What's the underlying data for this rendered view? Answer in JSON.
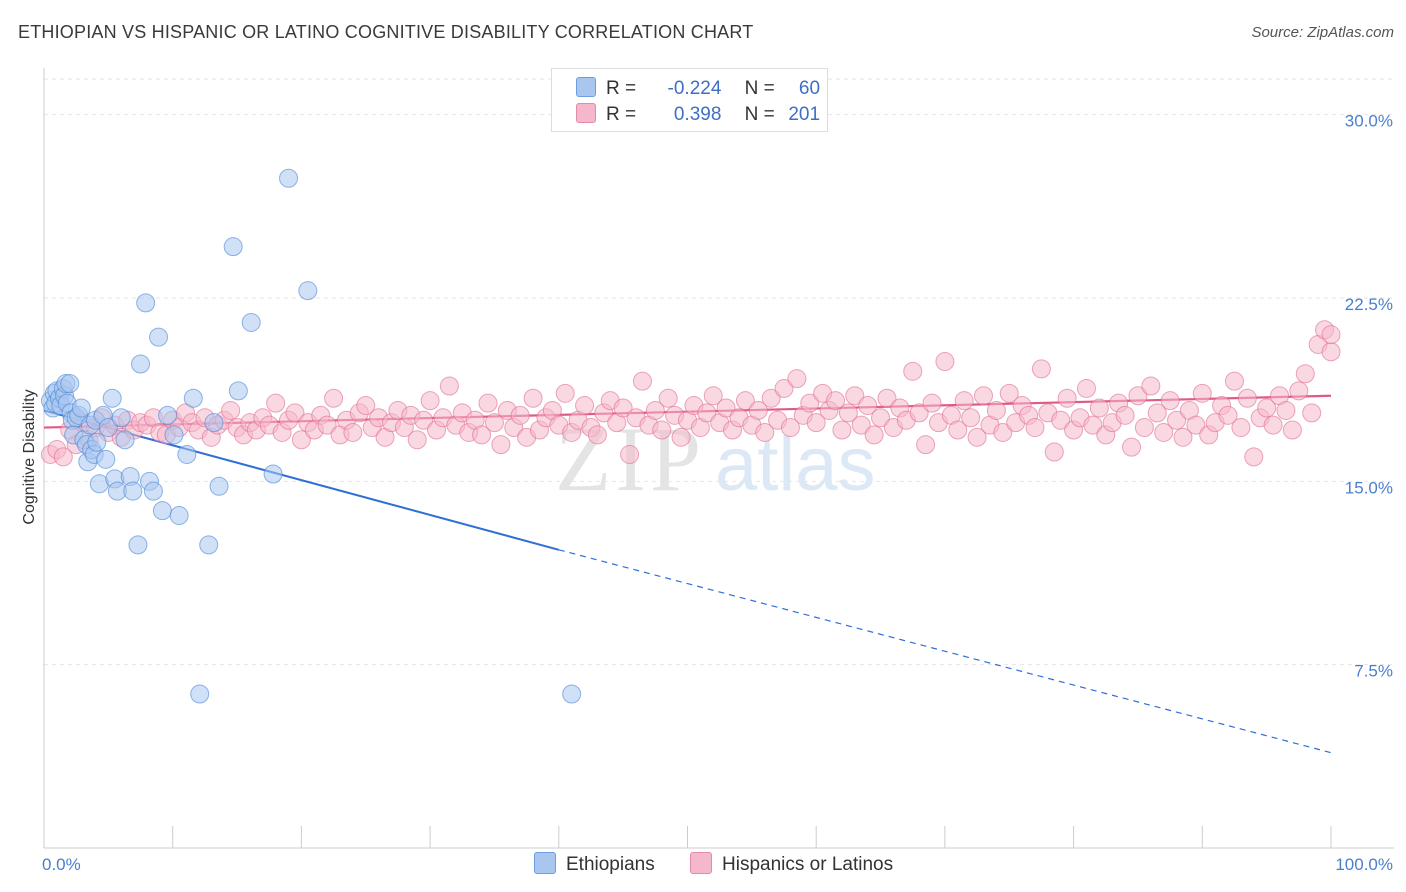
{
  "header": {
    "title": "ETHIOPIAN VS HISPANIC OR LATINO COGNITIVE DISABILITY CORRELATION CHART",
    "source": "Source: ZipAtlas.com"
  },
  "watermark": {
    "zip": "ZIP",
    "atlas": "atlas"
  },
  "legend": {
    "rows": [
      {
        "r_label": "R =",
        "r_value": "-0.224",
        "n_label": "N =",
        "n_value": "60",
        "color": "#a9c6ef"
      },
      {
        "r_label": "R =",
        "r_value": "0.398",
        "n_label": "N =",
        "n_value": "201",
        "color": "#f5b8cb"
      }
    ]
  },
  "bottom_legend": {
    "items": [
      {
        "label": "Ethiopians",
        "color": "#a9c6ef"
      },
      {
        "label": "Hispanics or Latinos",
        "color": "#f5b8cb"
      }
    ]
  },
  "chart_data": {
    "type": "scatter",
    "ylabel": "Cognitive Disability",
    "xlim": [
      0,
      100
    ],
    "ylim": [
      0,
      31.5
    ],
    "x_tick_labels": [
      "0.0%",
      "100.0%"
    ],
    "y_ticks": [
      {
        "value": 7.5,
        "label": "7.5%"
      },
      {
        "value": 15.0,
        "label": "15.0%"
      },
      {
        "value": 22.5,
        "label": "22.5%"
      },
      {
        "value": 30.0,
        "label": "30.0%"
      }
    ],
    "grid": true,
    "series": [
      {
        "name": "Ethiopians",
        "color": "#4a86d8",
        "fill": "#a9c6ef",
        "trend": {
          "x0": 0,
          "y0": 17.9,
          "x1": 40,
          "y1": 12.2,
          "dash_to_x": 100,
          "dash_to_y": 3.9
        },
        "points": [
          [
            0.5,
            18.3
          ],
          [
            0.7,
            18.0
          ],
          [
            0.8,
            18.6
          ],
          [
            0.9,
            18.2
          ],
          [
            1.0,
            18.7
          ],
          [
            1.2,
            18.4
          ],
          [
            1.3,
            18.1
          ],
          [
            1.5,
            18.8
          ],
          [
            1.6,
            18.5
          ],
          [
            1.7,
            19.0
          ],
          [
            1.8,
            18.2
          ],
          [
            2.0,
            19.0
          ],
          [
            2.1,
            17.8
          ],
          [
            2.2,
            17.5
          ],
          [
            2.3,
            16.9
          ],
          [
            2.5,
            17.6
          ],
          [
            2.7,
            17.7
          ],
          [
            2.9,
            18.0
          ],
          [
            3.1,
            16.7
          ],
          [
            3.3,
            16.5
          ],
          [
            3.4,
            15.8
          ],
          [
            3.6,
            17.3
          ],
          [
            3.7,
            16.3
          ],
          [
            3.9,
            16.1
          ],
          [
            4.0,
            17.5
          ],
          [
            4.1,
            16.6
          ],
          [
            4.3,
            14.9
          ],
          [
            4.6,
            17.7
          ],
          [
            4.8,
            15.9
          ],
          [
            5.0,
            17.2
          ],
          [
            5.3,
            18.4
          ],
          [
            5.5,
            15.1
          ],
          [
            5.7,
            14.6
          ],
          [
            6.0,
            17.6
          ],
          [
            6.3,
            16.7
          ],
          [
            6.7,
            15.2
          ],
          [
            6.9,
            14.6
          ],
          [
            7.3,
            12.4
          ],
          [
            7.5,
            19.8
          ],
          [
            7.9,
            22.3
          ],
          [
            8.2,
            15.0
          ],
          [
            8.5,
            14.6
          ],
          [
            8.9,
            20.9
          ],
          [
            9.2,
            13.8
          ],
          [
            9.6,
            17.7
          ],
          [
            10.1,
            16.9
          ],
          [
            10.5,
            13.6
          ],
          [
            11.1,
            16.1
          ],
          [
            11.6,
            18.4
          ],
          [
            12.1,
            6.3
          ],
          [
            12.8,
            12.4
          ],
          [
            13.2,
            17.4
          ],
          [
            13.6,
            14.8
          ],
          [
            14.7,
            24.6
          ],
          [
            15.1,
            18.7
          ],
          [
            16.1,
            21.5
          ],
          [
            17.8,
            15.3
          ],
          [
            19.0,
            27.4
          ],
          [
            20.5,
            22.8
          ],
          [
            41.0,
            6.3
          ]
        ]
      },
      {
        "name": "Hispanics or Latinos",
        "color": "#e06c93",
        "fill": "#f5b8cb",
        "trend": {
          "x0": 0,
          "y0": 17.2,
          "x1": 100,
          "y1": 18.5
        },
        "points": [
          [
            0.5,
            16.1
          ],
          [
            1.0,
            16.3
          ],
          [
            1.5,
            16.0
          ],
          [
            2.0,
            17.1
          ],
          [
            2.5,
            16.5
          ],
          [
            3.0,
            17.4
          ],
          [
            3.5,
            16.7
          ],
          [
            4.0,
            17.2
          ],
          [
            4.5,
            17.6
          ],
          [
            5.0,
            17.0
          ],
          [
            5.5,
            17.3
          ],
          [
            6.0,
            16.8
          ],
          [
            6.5,
            17.5
          ],
          [
            7.0,
            17.1
          ],
          [
            7.5,
            17.4
          ],
          [
            8.0,
            17.3
          ],
          [
            8.5,
            17.6
          ],
          [
            9.0,
            17.0
          ],
          [
            9.5,
            16.9
          ],
          [
            10.0,
            17.5
          ],
          [
            10.5,
            17.2
          ],
          [
            11.0,
            17.8
          ],
          [
            11.5,
            17.4
          ],
          [
            12.0,
            17.1
          ],
          [
            12.5,
            17.6
          ],
          [
            13.0,
            16.8
          ],
          [
            13.5,
            17.3
          ],
          [
            14.0,
            17.5
          ],
          [
            14.5,
            17.9
          ],
          [
            15.0,
            17.2
          ],
          [
            15.5,
            16.9
          ],
          [
            16.0,
            17.4
          ],
          [
            16.5,
            17.1
          ],
          [
            17.0,
            17.6
          ],
          [
            17.5,
            17.3
          ],
          [
            18.0,
            18.2
          ],
          [
            18.5,
            17.0
          ],
          [
            19.0,
            17.5
          ],
          [
            19.5,
            17.8
          ],
          [
            20.0,
            16.7
          ],
          [
            20.5,
            17.4
          ],
          [
            21.0,
            17.1
          ],
          [
            21.5,
            17.7
          ],
          [
            22.0,
            17.3
          ],
          [
            22.5,
            18.4
          ],
          [
            23.0,
            16.9
          ],
          [
            23.5,
            17.5
          ],
          [
            24.0,
            17.0
          ],
          [
            24.5,
            17.8
          ],
          [
            25.0,
            18.1
          ],
          [
            25.5,
            17.2
          ],
          [
            26.0,
            17.6
          ],
          [
            26.5,
            16.8
          ],
          [
            27.0,
            17.4
          ],
          [
            27.5,
            17.9
          ],
          [
            28.0,
            17.2
          ],
          [
            28.5,
            17.7
          ],
          [
            29.0,
            16.7
          ],
          [
            29.5,
            17.5
          ],
          [
            30.0,
            18.3
          ],
          [
            30.5,
            17.1
          ],
          [
            31.0,
            17.6
          ],
          [
            31.5,
            18.9
          ],
          [
            32.0,
            17.3
          ],
          [
            32.5,
            17.8
          ],
          [
            33.0,
            17.0
          ],
          [
            33.5,
            17.5
          ],
          [
            34.0,
            16.9
          ],
          [
            34.5,
            18.2
          ],
          [
            35.0,
            17.4
          ],
          [
            35.5,
            16.5
          ],
          [
            36.0,
            17.9
          ],
          [
            36.5,
            17.2
          ],
          [
            37.0,
            17.7
          ],
          [
            37.5,
            16.8
          ],
          [
            38.0,
            18.4
          ],
          [
            38.5,
            17.1
          ],
          [
            39.0,
            17.6
          ],
          [
            39.5,
            17.9
          ],
          [
            40.0,
            17.3
          ],
          [
            40.5,
            18.6
          ],
          [
            41.0,
            17.0
          ],
          [
            41.5,
            17.5
          ],
          [
            42.0,
            18.1
          ],
          [
            42.5,
            17.2
          ],
          [
            43.0,
            16.9
          ],
          [
            43.5,
            17.8
          ],
          [
            44.0,
            18.3
          ],
          [
            44.5,
            17.4
          ],
          [
            45.0,
            18.0
          ],
          [
            45.5,
            16.1
          ],
          [
            46.0,
            17.6
          ],
          [
            46.5,
            19.1
          ],
          [
            47.0,
            17.3
          ],
          [
            47.5,
            17.9
          ],
          [
            48.0,
            17.1
          ],
          [
            48.5,
            18.4
          ],
          [
            49.0,
            17.7
          ],
          [
            49.5,
            16.8
          ],
          [
            50.0,
            17.5
          ],
          [
            50.5,
            18.1
          ],
          [
            51.0,
            17.2
          ],
          [
            51.5,
            17.8
          ],
          [
            52.0,
            18.5
          ],
          [
            52.5,
            17.4
          ],
          [
            53.0,
            18.0
          ],
          [
            53.5,
            17.1
          ],
          [
            54.0,
            17.6
          ],
          [
            54.5,
            18.3
          ],
          [
            55.0,
            17.3
          ],
          [
            55.5,
            17.9
          ],
          [
            56.0,
            17.0
          ],
          [
            56.5,
            18.4
          ],
          [
            57.0,
            17.5
          ],
          [
            57.5,
            18.8
          ],
          [
            58.0,
            17.2
          ],
          [
            58.5,
            19.2
          ],
          [
            59.0,
            17.7
          ],
          [
            59.5,
            18.2
          ],
          [
            60.0,
            17.4
          ],
          [
            60.5,
            18.6
          ],
          [
            61.0,
            17.9
          ],
          [
            61.5,
            18.3
          ],
          [
            62.0,
            17.1
          ],
          [
            62.5,
            17.8
          ],
          [
            63.0,
            18.5
          ],
          [
            63.5,
            17.3
          ],
          [
            64.0,
            18.1
          ],
          [
            64.5,
            16.9
          ],
          [
            65.0,
            17.6
          ],
          [
            65.5,
            18.4
          ],
          [
            66.0,
            17.2
          ],
          [
            66.5,
            18.0
          ],
          [
            67.0,
            17.5
          ],
          [
            67.5,
            19.5
          ],
          [
            68.0,
            17.8
          ],
          [
            68.5,
            16.5
          ],
          [
            69.0,
            18.2
          ],
          [
            69.5,
            17.4
          ],
          [
            70.0,
            19.9
          ],
          [
            70.5,
            17.7
          ],
          [
            71.0,
            17.1
          ],
          [
            71.5,
            18.3
          ],
          [
            72.0,
            17.6
          ],
          [
            72.5,
            16.8
          ],
          [
            73.0,
            18.5
          ],
          [
            73.5,
            17.3
          ],
          [
            74.0,
            17.9
          ],
          [
            74.5,
            17.0
          ],
          [
            75.0,
            18.6
          ],
          [
            75.5,
            17.4
          ],
          [
            76.0,
            18.1
          ],
          [
            76.5,
            17.7
          ],
          [
            77.0,
            17.2
          ],
          [
            77.5,
            19.6
          ],
          [
            78.0,
            17.8
          ],
          [
            78.5,
            16.2
          ],
          [
            79.0,
            17.5
          ],
          [
            79.5,
            18.4
          ],
          [
            80.0,
            17.1
          ],
          [
            80.5,
            17.6
          ],
          [
            81.0,
            18.8
          ],
          [
            81.5,
            17.3
          ],
          [
            82.0,
            18.0
          ],
          [
            82.5,
            16.9
          ],
          [
            83.0,
            17.4
          ],
          [
            83.5,
            18.2
          ],
          [
            84.0,
            17.7
          ],
          [
            84.5,
            16.4
          ],
          [
            85.0,
            18.5
          ],
          [
            85.5,
            17.2
          ],
          [
            86.0,
            18.9
          ],
          [
            86.5,
            17.8
          ],
          [
            87.0,
            17.0
          ],
          [
            87.5,
            18.3
          ],
          [
            88.0,
            17.5
          ],
          [
            88.5,
            16.8
          ],
          [
            89.0,
            17.9
          ],
          [
            89.5,
            17.3
          ],
          [
            90.0,
            18.6
          ],
          [
            90.5,
            16.9
          ],
          [
            91.0,
            17.4
          ],
          [
            91.5,
            18.1
          ],
          [
            92.0,
            17.7
          ],
          [
            92.5,
            19.1
          ],
          [
            93.0,
            17.2
          ],
          [
            93.5,
            18.4
          ],
          [
            94.0,
            16.0
          ],
          [
            94.5,
            17.6
          ],
          [
            95.0,
            18.0
          ],
          [
            95.5,
            17.3
          ],
          [
            96.0,
            18.5
          ],
          [
            96.5,
            17.9
          ],
          [
            97.0,
            17.1
          ],
          [
            97.5,
            18.7
          ],
          [
            98.0,
            19.4
          ],
          [
            98.5,
            17.8
          ],
          [
            99.0,
            20.6
          ],
          [
            99.5,
            21.2
          ],
          [
            100.0,
            20.3
          ],
          [
            100.0,
            21.0
          ]
        ]
      }
    ]
  }
}
